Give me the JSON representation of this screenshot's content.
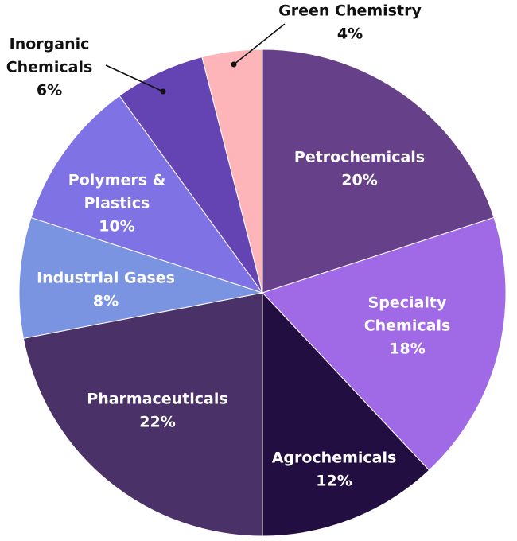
{
  "chart_data": {
    "type": "pie",
    "title": "",
    "slices": [
      {
        "label": [
          "Petrochemicals"
        ],
        "value": 20,
        "pct": "20%",
        "color": "#66418A"
      },
      {
        "label": [
          "Specialty",
          "Chemicals"
        ],
        "value": 18,
        "pct": "18%",
        "color": "#A06AE6"
      },
      {
        "label": [
          "Agrochemicals"
        ],
        "value": 12,
        "pct": "12%",
        "color": "#220E40"
      },
      {
        "label": [
          "Pharmaceuticals"
        ],
        "value": 22,
        "pct": "22%",
        "color": "#4A3168"
      },
      {
        "label": [
          "Industrial Gases"
        ],
        "value": 8,
        "pct": "8%",
        "color": "#7A94E2"
      },
      {
        "label": [
          "Polymers &",
          "Plastics"
        ],
        "value": 10,
        "pct": "10%",
        "color": "#7E72E4"
      },
      {
        "label": [
          "Inorganic",
          "Chemicals"
        ],
        "value": 6,
        "pct": "6%",
        "color": "#6444B2"
      },
      {
        "label": [
          "Green Chemistry"
        ],
        "value": 4,
        "pct": "4%",
        "color": "#FDB5BA"
      }
    ],
    "start": "12 o'clock",
    "direction": "clockwise"
  }
}
